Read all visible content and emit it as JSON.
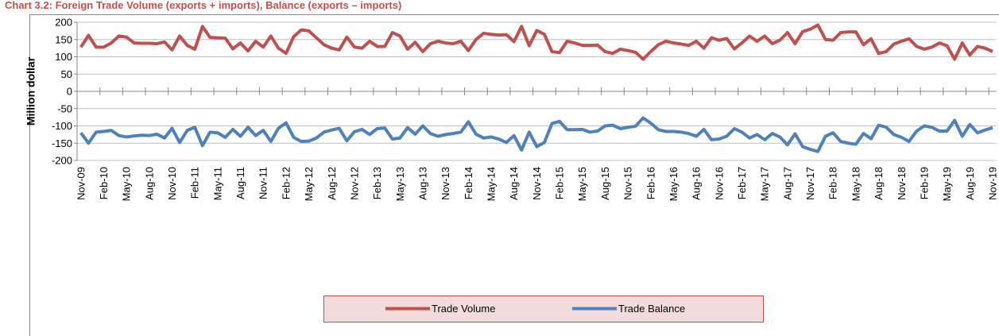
{
  "chart_data": {
    "type": "line",
    "title": "Chart 3.2: Foreign Trade Volume (exports + imports), Balance (exports – imports)",
    "ylabel": "Million dollar",
    "categories": [
      "Nov-09",
      null,
      null,
      "Feb-10",
      null,
      null,
      "May-10",
      null,
      null,
      "Aug-10",
      null,
      null,
      "Nov-10",
      null,
      null,
      "Feb-11",
      null,
      null,
      "May-11",
      null,
      null,
      "Aug-11",
      null,
      null,
      "Nov-11",
      null,
      null,
      "Feb-12",
      null,
      null,
      "May-12",
      null,
      null,
      "Aug-12",
      null,
      null,
      "Nov-12",
      null,
      null,
      "Feb-13",
      null,
      null,
      "May-13",
      null,
      null,
      "Aug-13",
      null,
      null,
      "Nov-13",
      null,
      null,
      "Feb-14",
      null,
      null,
      "May-14",
      null,
      null,
      "Aug-14",
      null,
      null,
      "Nov-14",
      null,
      null,
      "Feb-15",
      null,
      null,
      "May-15",
      null,
      null,
      "Aug-15",
      null,
      null,
      "Nov-15",
      null,
      null,
      "Feb-16",
      null,
      null,
      "May-16",
      null,
      null,
      "Aug-16",
      null,
      null,
      "Nov-16",
      null,
      null,
      "Feb-17",
      null,
      null,
      "May-17",
      null,
      null,
      "Aug-17",
      null,
      null,
      "Nov-17",
      null,
      null,
      "Feb-18",
      null,
      null,
      "May-18",
      null,
      null,
      "Aug-18",
      null,
      null,
      "Nov-18",
      null,
      null,
      "Feb-19",
      null,
      null,
      "May-19",
      null,
      null,
      "Aug-19",
      null,
      null,
      "Nov-19"
    ],
    "series": [
      {
        "name": "Trade Volume",
        "color": "#c0504d",
        "values": [
          128,
          162,
          128,
          128,
          140,
          160,
          157,
          140,
          139,
          139,
          138,
          143,
          120,
          160,
          133,
          122,
          188,
          156,
          155,
          154,
          123,
          140,
          117,
          145,
          128,
          160,
          125,
          110,
          158,
          178,
          175,
          155,
          135,
          125,
          120,
          157,
          128,
          125,
          145,
          130,
          130,
          170,
          160,
          122,
          142,
          115,
          138,
          145,
          140,
          138,
          145,
          118,
          150,
          168,
          165,
          163,
          164,
          144,
          188,
          132,
          176,
          165,
          115,
          112,
          145,
          140,
          133,
          133,
          134,
          115,
          110,
          122,
          118,
          113,
          93,
          115,
          135,
          145,
          140,
          137,
          133,
          145,
          125,
          155,
          148,
          153,
          123,
          140,
          160,
          145,
          160,
          138,
          148,
          170,
          138,
          173,
          180,
          192,
          150,
          148,
          170,
          172,
          172,
          135,
          152,
          110,
          115,
          137,
          145,
          152,
          130,
          122,
          128,
          140,
          132,
          93,
          140,
          105,
          130,
          125,
          115
        ]
      },
      {
        "name": "Trade Balance",
        "color": "#4f81bd",
        "values": [
          -120,
          -150,
          -118,
          -116,
          -113,
          -128,
          -132,
          -129,
          -127,
          -128,
          -124,
          -135,
          -107,
          -148,
          -113,
          -104,
          -157,
          -118,
          -120,
          -133,
          -110,
          -130,
          -104,
          -128,
          -113,
          -145,
          -107,
          -91,
          -133,
          -145,
          -144,
          -135,
          -118,
          -112,
          -107,
          -143,
          -117,
          -110,
          -125,
          -108,
          -106,
          -138,
          -135,
          -105,
          -124,
          -100,
          -122,
          -130,
          -125,
          -122,
          -118,
          -88,
          -124,
          -135,
          -132,
          -138,
          -148,
          -128,
          -170,
          -118,
          -160,
          -148,
          -93,
          -87,
          -111,
          -111,
          -110,
          -118,
          -115,
          -100,
          -98,
          -108,
          -104,
          -101,
          -77,
          -92,
          -111,
          -116,
          -116,
          -118,
          -122,
          -130,
          -110,
          -140,
          -138,
          -130,
          -108,
          -118,
          -135,
          -125,
          -140,
          -122,
          -132,
          -155,
          -123,
          -160,
          -168,
          -174,
          -130,
          -120,
          -145,
          -150,
          -153,
          -122,
          -137,
          -98,
          -104,
          -125,
          -133,
          -145,
          -115,
          -100,
          -104,
          -115,
          -115,
          -84,
          -130,
          -96,
          -120,
          -112,
          -105
        ]
      }
    ],
    "ylim": [
      -200,
      200
    ],
    "yticks": [
      -200,
      -150,
      -100,
      -50,
      0,
      50,
      100,
      150,
      200
    ],
    "grid": true,
    "legend": "bottom"
  }
}
